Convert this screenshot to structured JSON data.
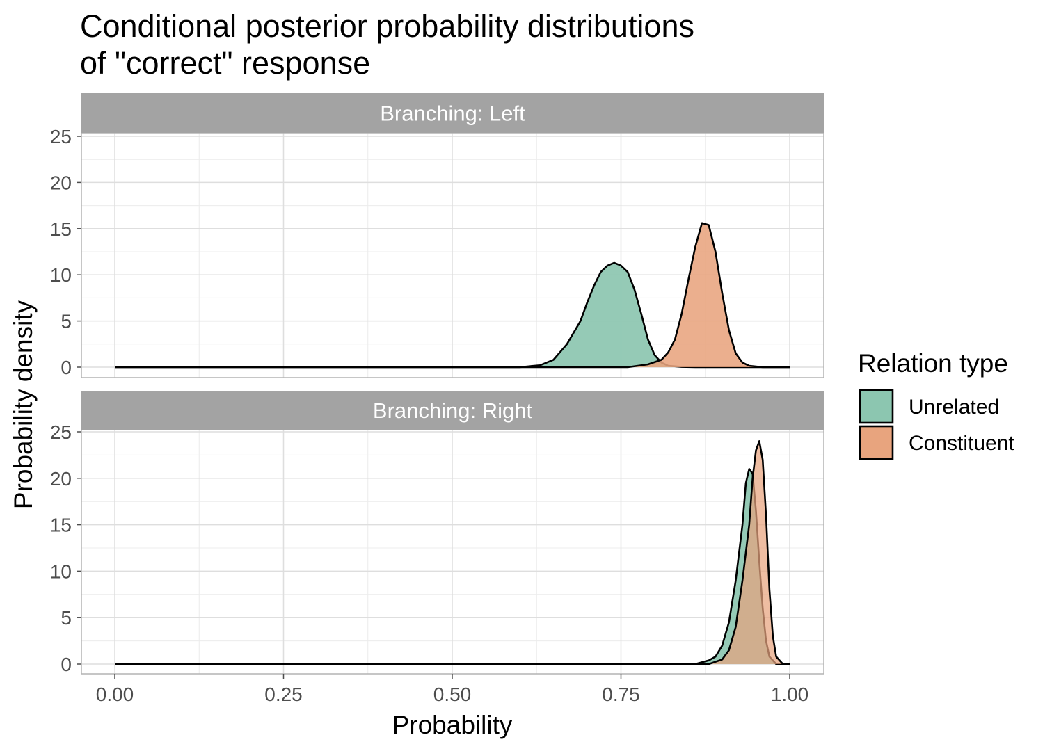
{
  "chart_data": {
    "type": "area",
    "title_lines": [
      "Conditional posterior probability distributions",
      "of \"correct\" response"
    ],
    "xlabel": "Probability",
    "ylabel": "Probability density",
    "xlim": [
      0,
      1
    ],
    "ylim": [
      0,
      25
    ],
    "x_ticks": [
      0,
      0.25,
      0.5,
      0.75,
      1
    ],
    "x_tick_labels": [
      "0.00",
      "0.25",
      "0.50",
      "0.75",
      "1.00"
    ],
    "y_ticks": [
      0,
      5,
      10,
      15,
      20,
      25
    ],
    "y_tick_labels": [
      "0",
      "5",
      "10",
      "15",
      "20",
      "25"
    ],
    "grid": true,
    "legend": {
      "title": "Relation type",
      "position": "right",
      "entries": [
        {
          "name": "Unrelated",
          "color": "#8cc6b0"
        },
        {
          "name": "Constituent",
          "color": "#e8a47e"
        }
      ]
    },
    "facets": [
      {
        "strip": "Branching: Left",
        "series": [
          {
            "name": "Unrelated",
            "color": "#8cc6b0",
            "opacity": 0.92,
            "x": [
              0,
              0.6,
              0.63,
              0.65,
              0.67,
              0.69,
              0.7,
              0.71,
              0.72,
              0.73,
              0.74,
              0.75,
              0.76,
              0.77,
              0.78,
              0.79,
              0.8,
              0.81,
              0.82,
              0.84,
              0.86,
              1
            ],
            "y": [
              0,
              0,
              0.2,
              0.8,
              2.5,
              5,
              7,
              8.8,
              10.3,
              11.0,
              11.3,
              11.0,
              10.3,
              8.4,
              5.8,
              3.0,
              1.3,
              0.5,
              0.15,
              0.03,
              0,
              0
            ]
          },
          {
            "name": "Constituent",
            "color": "#e8a47e",
            "opacity": 0.88,
            "x": [
              0,
              0.76,
              0.79,
              0.81,
              0.82,
              0.83,
              0.84,
              0.85,
              0.86,
              0.87,
              0.88,
              0.89,
              0.9,
              0.91,
              0.92,
              0.93,
              0.94,
              0.96,
              1
            ],
            "y": [
              0,
              0,
              0.3,
              0.8,
              1.6,
              3.0,
              5.8,
              9.5,
              13.0,
              15.6,
              15.4,
              12.5,
              8.0,
              4.0,
              1.5,
              0.5,
              0.15,
              0,
              0
            ]
          }
        ]
      },
      {
        "strip": "Branching: Right",
        "series": [
          {
            "name": "Unrelated",
            "color": "#8cc6b0",
            "opacity": 0.92,
            "x": [
              0,
              0.86,
              0.88,
              0.89,
              0.9,
              0.91,
              0.92,
              0.93,
              0.935,
              0.94,
              0.945,
              0.95,
              0.955,
              0.96,
              0.965,
              0.97,
              0.98,
              1
            ],
            "y": [
              0,
              0,
              0.4,
              0.8,
              2,
              4.5,
              9,
              15,
              19.5,
              21.0,
              20.5,
              16.5,
              11,
              6,
              2.5,
              0.8,
              0,
              0
            ]
          },
          {
            "name": "Constituent",
            "color": "#e8a47e",
            "opacity": 0.72,
            "x": [
              0,
              0.88,
              0.9,
              0.91,
              0.92,
              0.93,
              0.94,
              0.945,
              0.95,
              0.955,
              0.96,
              0.965,
              0.97,
              0.975,
              0.98,
              0.99,
              1
            ],
            "y": [
              0,
              0,
              0.5,
              1.5,
              4,
              9,
              15,
              20,
              23,
              24,
              22,
              16,
              8,
              3,
              0.8,
              0,
              0
            ]
          }
        ]
      }
    ]
  }
}
